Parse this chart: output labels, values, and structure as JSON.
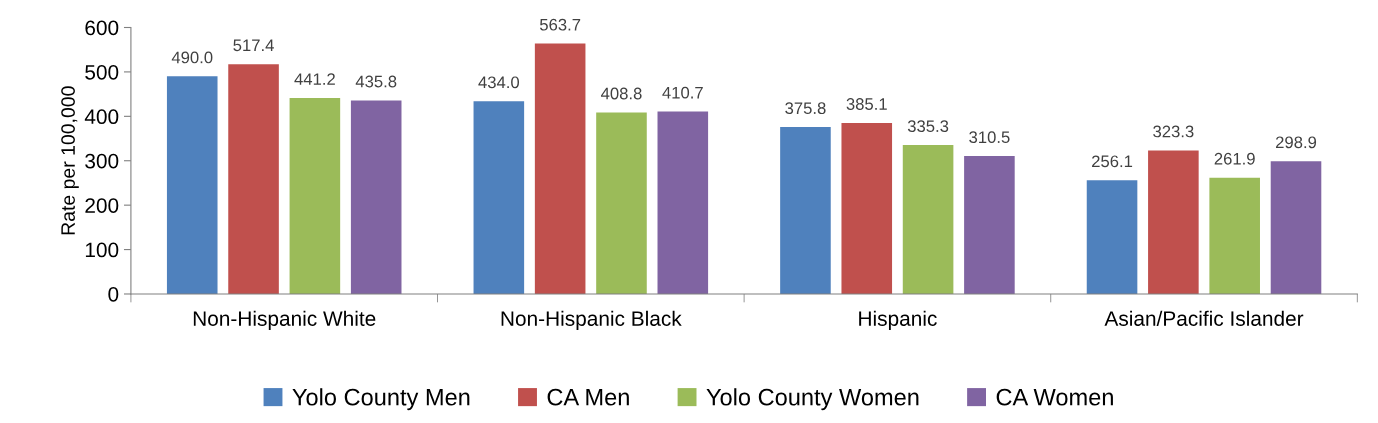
{
  "chart_data": {
    "type": "bar",
    "ylabel": "Rate per 100,000",
    "categories": [
      "Non-Hispanic White",
      "Non-Hispanic Black",
      "Hispanic",
      "Asian/Pacific Islander"
    ],
    "series": [
      {
        "name": "Yolo County Men",
        "color": "#4f81bd",
        "values": [
          490.0,
          434.0,
          375.8,
          256.1
        ],
        "value_labels": [
          "490.0",
          "434.0",
          "375.8",
          "256.1"
        ]
      },
      {
        "name": "CA Men",
        "color": "#c0504d",
        "values": [
          517.4,
          563.7,
          385.1,
          323.3
        ],
        "value_labels": [
          "517.4",
          "563.7",
          "385.1",
          "323.3"
        ]
      },
      {
        "name": "Yolo County Women",
        "color": "#9bbb59",
        "values": [
          441.2,
          408.8,
          335.3,
          261.9
        ],
        "value_labels": [
          "441.2",
          "408.8",
          "335.3",
          "261.9"
        ]
      },
      {
        "name": "CA Women",
        "color": "#8064a2",
        "values": [
          435.8,
          410.7,
          310.5,
          298.9
        ],
        "value_labels": [
          "435.8",
          "410.7",
          "310.5",
          "298.9"
        ]
      }
    ],
    "ylim": [
      0,
      600
    ],
    "yticks": [
      0,
      100,
      200,
      300,
      400,
      500,
      600
    ],
    "grid": false,
    "legend": "bottom"
  }
}
